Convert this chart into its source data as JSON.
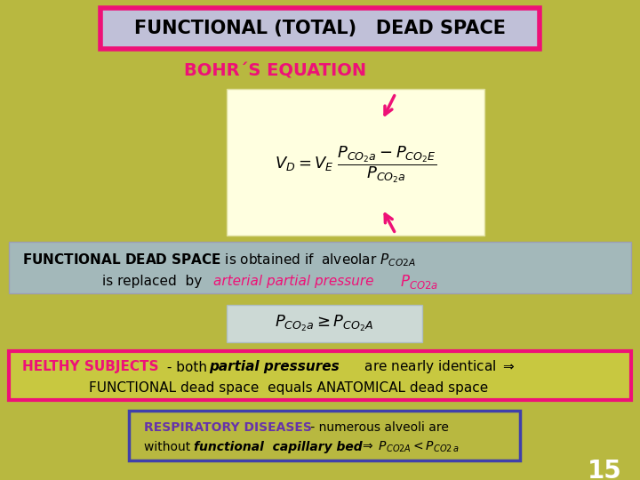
{
  "bg_color": "#b8b840",
  "title_text": "FUNCTIONAL (TOTAL)   DEAD SPACE",
  "title_box_facecolor": "#c0c0d8",
  "title_border_color": "#ee1177",
  "bohr_label": "BOHR´S EQUATION",
  "bohr_color": "#ee1177",
  "formula_box_color": "#ffffe0",
  "info_box_color": "#a0b8d0",
  "helthy_box_color": "#c8c840",
  "helthy_border_color": "#ee1177",
  "ineq_box_color": "#d0e0f0",
  "resp_box_color": "#b8b840",
  "resp_border_color": "#4040aa",
  "page_number": "15",
  "page_num_color": "#ffffff"
}
